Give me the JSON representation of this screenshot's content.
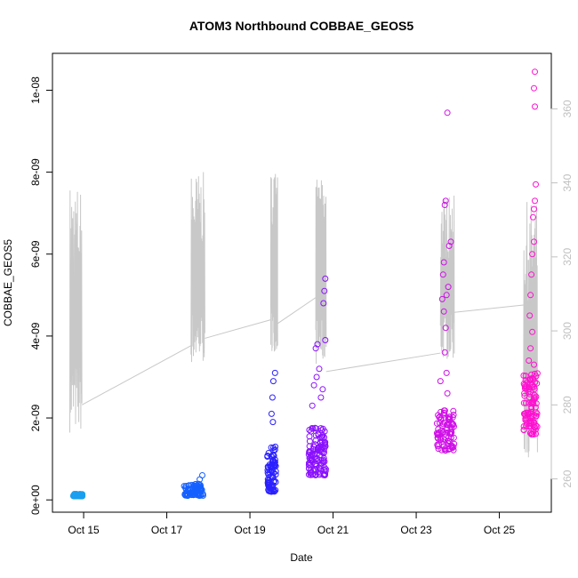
{
  "chart_data": {
    "type": "scatter",
    "title": "ATOM3 Northbound COBBAE_GEOS5",
    "xlabel": "Date",
    "ylabel": "COBBAE_GEOS5",
    "x_ticks": [
      "Oct 15",
      "Oct 17",
      "Oct 19",
      "Oct 21",
      "Oct 23",
      "Oct 25"
    ],
    "x_tick_dates": [
      "2016-10-15",
      "2016-10-17",
      "2016-10-19",
      "2016-10-21",
      "2016-10-23",
      "2016-10-25"
    ],
    "xlim": [
      "2016-10-14 06:00",
      "2016-10-26 06:00"
    ],
    "y_ticks": [
      "0e+00",
      "2e-09",
      "4e-09",
      "6e-09",
      "8e-09",
      "1e-08"
    ],
    "y_tick_values": [
      0,
      2e-09,
      4e-09,
      6e-09,
      8e-09,
      1e-08
    ],
    "ylim": [
      -3e-10,
      1.09e-08
    ],
    "y2_ticks": [
      "260",
      "280",
      "300",
      "320",
      "340",
      "360"
    ],
    "y2_tick_values": [
      260,
      280,
      300,
      320,
      340,
      360
    ],
    "y2lim": [
      251,
      375
    ],
    "grid": false,
    "legend": "none",
    "colors": {
      "line": "#c8c8c8",
      "axis": "#000000",
      "right_axis": "#c0c0c0"
    },
    "series": [
      {
        "type": "scatter",
        "color_scale": [
          "#1a9ff0",
          "#0050ff",
          "#2a10ff",
          "#8a10ff",
          "#d010e8",
          "#ff10d0"
        ],
        "clusters": [
          {
            "start": "2016-10-14 18:00",
            "end": "2016-10-14 23:30",
            "ymin": 9e-11,
            "ymax": 1.5e-10,
            "n": 60,
            "color": "#1a9ff0"
          },
          {
            "start": "2016-10-17 10:00",
            "end": "2016-10-17 21:00",
            "ymin": 1e-10,
            "ymax": 4e-10,
            "n": 80,
            "color": "#1560ff",
            "extra": [
              [
                "2016-10-17 20:30",
                6e-10
              ],
              [
                "2016-10-17 19:00",
                5e-10
              ]
            ]
          },
          {
            "start": "2016-10-19 10:00",
            "end": "2016-10-19 15:00",
            "ymin": 2e-10,
            "ymax": 1.3e-09,
            "n": 80,
            "color": "#2a20ff",
            "extra": [
              [
                "2016-10-19 14:30",
                3.1e-09
              ],
              [
                "2016-10-19 13:30",
                2.9e-09
              ],
              [
                "2016-10-19 13:00",
                2.5e-09
              ],
              [
                "2016-10-19 12:30",
                2.1e-09
              ],
              [
                "2016-10-19 13:15",
                1.9e-09
              ]
            ]
          },
          {
            "start": "2016-10-20 10:00",
            "end": "2016-10-20 20:00",
            "ymin": 6e-10,
            "ymax": 1.8e-09,
            "n": 120,
            "color": "#8a10ff",
            "extra": [
              [
                "2016-10-20 19:30",
                5.4e-09
              ],
              [
                "2016-10-20 19:00",
                5.1e-09
              ],
              [
                "2016-10-20 18:30",
                4.8e-09
              ],
              [
                "2016-10-20 15:00",
                3.8e-09
              ],
              [
                "2016-10-20 14:00",
                3.7e-09
              ],
              [
                "2016-10-20 19:30",
                3.9e-09
              ],
              [
                "2016-10-20 16:00",
                3.2e-09
              ],
              [
                "2016-10-20 13:00",
                2.8e-09
              ],
              [
                "2016-10-20 12:00",
                2.3e-09
              ],
              [
                "2016-10-20 17:00",
                2.5e-09
              ],
              [
                "2016-10-20 18:00",
                2.7e-09
              ],
              [
                "2016-10-20 14:30",
                3e-09
              ]
            ]
          },
          {
            "start": "2016-10-23 12:00",
            "end": "2016-10-23 22:00",
            "ymin": 1.2e-09,
            "ymax": 2.2e-09,
            "n": 90,
            "color": "#d010e8",
            "extra": [
              [
                "2016-10-23 18:00",
                9.45e-09
              ],
              [
                "2016-10-23 17:00",
                7.3e-09
              ],
              [
                "2016-10-23 16:30",
                7.2e-09
              ],
              [
                "2016-10-23 20:00",
                6.3e-09
              ],
              [
                "2016-10-23 19:00",
                6.2e-09
              ],
              [
                "2016-10-23 16:00",
                5.8e-09
              ],
              [
                "2016-10-23 15:30",
                5.5e-09
              ],
              [
                "2016-10-23 17:30",
                5e-09
              ],
              [
                "2016-10-23 16:00",
                4.6e-09
              ],
              [
                "2016-10-23 17:00",
                4.2e-09
              ],
              [
                "2016-10-23 16:30",
                3.6e-09
              ],
              [
                "2016-10-23 17:30",
                3.1e-09
              ],
              [
                "2016-10-23 14:00",
                2.9e-09
              ],
              [
                "2016-10-23 18:00",
                2.6e-09
              ],
              [
                "2016-10-23 15:00",
                4.9e-09
              ],
              [
                "2016-10-23 18:30",
                5.2e-09
              ]
            ]
          },
          {
            "start": "2016-10-25 14:00",
            "end": "2016-10-25 22:00",
            "ymin": 1.6e-09,
            "ymax": 3.1e-09,
            "n": 100,
            "color": "#ff10d0",
            "extra": [
              [
                "2016-10-25 20:30",
                1.045e-08
              ],
              [
                "2016-10-25 20:00",
                1.005e-08
              ],
              [
                "2016-10-25 20:30",
                9.6e-09
              ],
              [
                "2016-10-25 21:00",
                7.7e-09
              ],
              [
                "2016-10-25 20:30",
                7.3e-09
              ],
              [
                "2016-10-25 20:00",
                7.1e-09
              ],
              [
                "2016-10-25 19:30",
                6.9e-09
              ],
              [
                "2016-10-25 20:00",
                6.3e-09
              ],
              [
                "2016-10-25 19:00",
                6e-09
              ],
              [
                "2016-10-25 18:30",
                5.5e-09
              ],
              [
                "2016-10-25 18:00",
                5e-09
              ],
              [
                "2016-10-25 17:30",
                4.5e-09
              ],
              [
                "2016-10-25 19:00",
                4.1e-09
              ],
              [
                "2016-10-25 18:00",
                3.7e-09
              ],
              [
                "2016-10-25 17:00",
                3.4e-09
              ],
              [
                "2016-10-25 20:00",
                3.3e-09
              ]
            ]
          }
        ]
      },
      {
        "type": "line",
        "axis": "right",
        "color": "#c8c8c8",
        "flights": [
          {
            "start": "2016-10-14 16:00",
            "end": "2016-10-14 23:00",
            "min": 265,
            "max": 340
          },
          {
            "start": "2016-10-17 14:00",
            "end": "2016-10-17 22:00",
            "min": 285,
            "max": 343
          },
          {
            "start": "2016-10-19 12:00",
            "end": "2016-10-19 16:00",
            "min": 289,
            "max": 343
          },
          {
            "start": "2016-10-20 14:00",
            "end": "2016-10-20 20:00",
            "min": 285,
            "max": 341
          },
          {
            "start": "2016-10-23 14:00",
            "end": "2016-10-23 22:00",
            "min": 287,
            "max": 337
          },
          {
            "start": "2016-10-25 14:00",
            "end": "2016-10-25 22:00",
            "min": 258,
            "max": 335
          }
        ],
        "connectors": [
          [
            [
              "2016-10-14 23:00",
              280
            ],
            [
              "2016-10-17 14:00",
              296
            ]
          ],
          [
            [
              "2016-10-17 22:00",
              298
            ],
            [
              "2016-10-19 12:00",
              303
            ]
          ],
          [
            [
              "2016-10-19 16:00",
              302
            ],
            [
              "2016-10-20 14:00",
              309
            ]
          ],
          [
            [
              "2016-10-20 20:00",
              289
            ],
            [
              "2016-10-23 14:00",
              294
            ]
          ],
          [
            [
              "2016-10-23 22:00",
              305
            ],
            [
              "2016-10-25 14:00",
              307
            ]
          ]
        ]
      }
    ]
  }
}
